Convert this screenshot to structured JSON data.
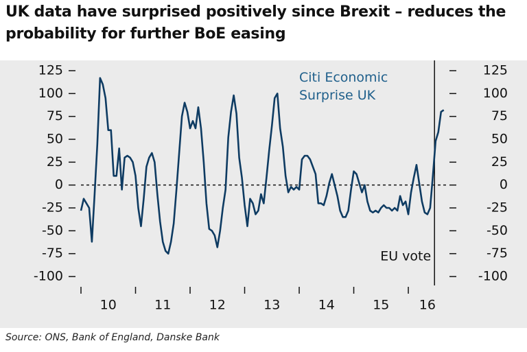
{
  "chart_data": {
    "type": "line",
    "title": "UK data have surprised positively since Brexit – reduces the probability for further BoE easing",
    "source": "Source: ONS, Bank of England, Danske Bank",
    "x": [
      2010,
      2010.05,
      2010.1,
      2010.15,
      2010.2,
      2010.25,
      2010.3,
      2010.35,
      2010.4,
      2010.45,
      2010.5,
      2010.55,
      2010.6,
      2010.65,
      2010.7,
      2010.75,
      2010.8,
      2010.85,
      2010.9,
      2010.95,
      2011,
      2011.05,
      2011.1,
      2011.15,
      2011.2,
      2011.25,
      2011.3,
      2011.35,
      2011.4,
      2011.45,
      2011.5,
      2011.55,
      2011.6,
      2011.65,
      2011.7,
      2011.75,
      2011.8,
      2011.85,
      2011.9,
      2011.95,
      2012,
      2012.05,
      2012.1,
      2012.15,
      2012.2,
      2012.25,
      2012.3,
      2012.35,
      2012.4,
      2012.45,
      2012.5,
      2012.55,
      2012.6,
      2012.65,
      2012.7,
      2012.75,
      2012.8,
      2012.85,
      2012.9,
      2012.95,
      2013,
      2013.05,
      2013.1,
      2013.15,
      2013.2,
      2013.25,
      2013.3,
      2013.35,
      2013.4,
      2013.45,
      2013.5,
      2013.55,
      2013.6,
      2013.65,
      2013.7,
      2013.75,
      2013.8,
      2013.85,
      2013.9,
      2013.95,
      2014,
      2014.05,
      2014.1,
      2014.15,
      2014.2,
      2014.25,
      2014.3,
      2014.35,
      2014.4,
      2014.45,
      2014.5,
      2014.55,
      2014.6,
      2014.65,
      2014.7,
      2014.75,
      2014.8,
      2014.85,
      2014.9,
      2014.95,
      2015,
      2015.05,
      2015.1,
      2015.15,
      2015.2,
      2015.25,
      2015.3,
      2015.35,
      2015.4,
      2015.45,
      2015.5,
      2015.55,
      2015.6,
      2015.65,
      2015.7,
      2015.75,
      2015.8,
      2015.85,
      2015.9,
      2015.95,
      2016,
      2016.05,
      2016.1,
      2016.15,
      2016.2,
      2016.25,
      2016.3,
      2016.35,
      2016.4,
      2016.45,
      2016.5,
      2016.55,
      2016.6,
      2016.65
    ],
    "series": [
      {
        "name": "Citi Economic Surprise UK",
        "color": "#0e3b62",
        "values": [
          -28,
          -15,
          -20,
          -25,
          -62,
          -10,
          45,
          117,
          110,
          95,
          60,
          60,
          10,
          10,
          40,
          -5,
          30,
          32,
          30,
          25,
          10,
          -25,
          -45,
          -15,
          20,
          30,
          35,
          25,
          -10,
          -40,
          -62,
          -72,
          -75,
          -62,
          -42,
          -5,
          35,
          75,
          90,
          80,
          62,
          70,
          62,
          85,
          62,
          25,
          -20,
          -48,
          -50,
          -55,
          -68,
          -50,
          -25,
          -5,
          52,
          80,
          98,
          78,
          30,
          8,
          -22,
          -45,
          -15,
          -20,
          -32,
          -28,
          -10,
          -20,
          8,
          38,
          65,
          95,
          100,
          62,
          42,
          10,
          -8,
          -2,
          -5,
          -2,
          -5,
          28,
          32,
          32,
          28,
          20,
          12,
          -20,
          -20,
          -22,
          -12,
          2,
          12,
          0,
          -12,
          -28,
          -35,
          -35,
          -28,
          -5,
          15,
          12,
          2,
          -8,
          0,
          -18,
          -28,
          -30,
          -28,
          -30,
          -25,
          -22,
          -25,
          -25,
          -28,
          -25,
          -28,
          -12,
          -22,
          -18,
          -32,
          -8,
          8,
          22,
          2,
          -18,
          -30,
          -32,
          -25,
          10,
          48,
          58,
          80,
          82
        ]
      }
    ],
    "legend_color": "#1f5f8b",
    "xlim": [
      2010,
      2016.7
    ],
    "xticks": [
      {
        "value": 2010.5,
        "label": "10"
      },
      {
        "value": 2011.5,
        "label": "11"
      },
      {
        "value": 2012.5,
        "label": "12"
      },
      {
        "value": 2013.5,
        "label": "13"
      },
      {
        "value": 2014.5,
        "label": "14"
      },
      {
        "value": 2015.5,
        "label": "15"
      },
      {
        "value": 2016.35,
        "label": "16"
      }
    ],
    "xminorticks": [
      2010,
      2011,
      2012,
      2013,
      2014,
      2015,
      2016
    ],
    "ylim": [
      -100,
      125
    ],
    "yticks": [
      125,
      100,
      75,
      50,
      25,
      0,
      -25,
      -50,
      -75,
      -100
    ],
    "y2lim": [
      -100,
      125
    ],
    "y2ticks": [
      125,
      100,
      75,
      50,
      25,
      0,
      -25,
      -50,
      -75,
      -100
    ],
    "zero_line": true,
    "annotations": [
      {
        "text": "EU vote",
        "x": 2016.48
      }
    ]
  }
}
